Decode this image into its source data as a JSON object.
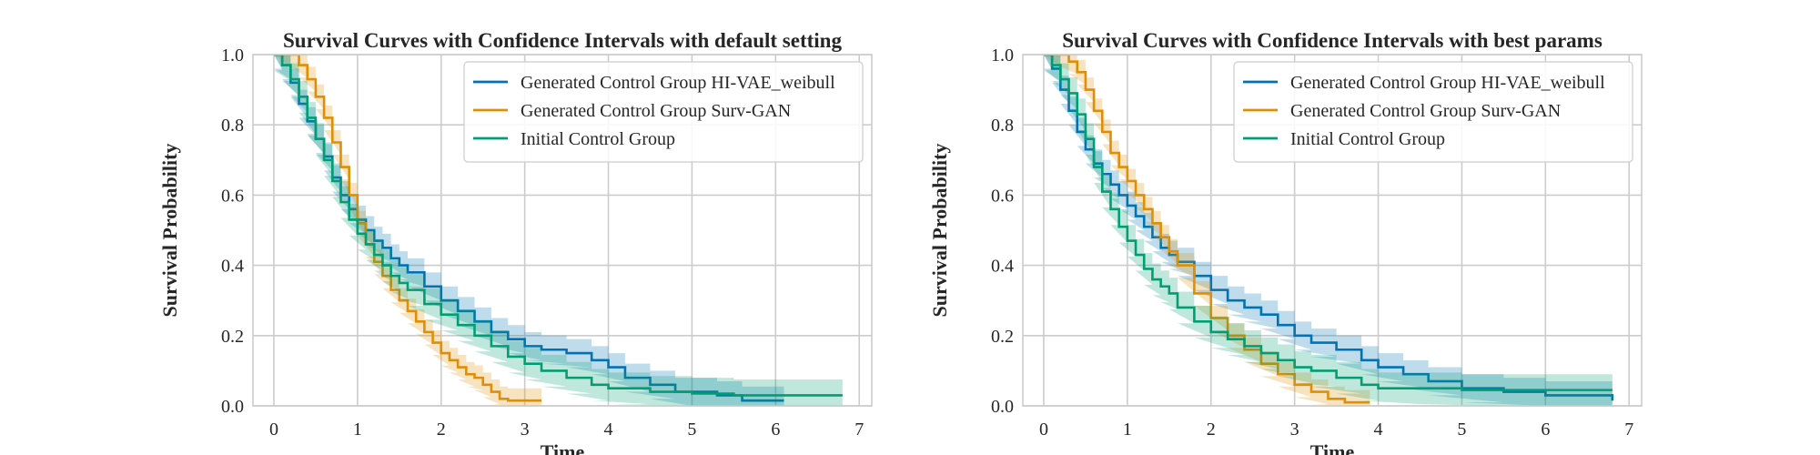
{
  "chart_data": [
    {
      "type": "line",
      "subtype": "step-survival-with-ci",
      "title": "Survival Curves with Confidence Intervals with default setting",
      "xlabel": "Time",
      "ylabel": "Survival Probability",
      "xlim": [
        -0.25,
        7.15
      ],
      "ylim": [
        0.0,
        1.0
      ],
      "xticks": [
        0,
        1,
        2,
        3,
        4,
        5,
        6,
        7
      ],
      "yticks": [
        0.0,
        0.2,
        0.4,
        0.6,
        0.8,
        1.0
      ],
      "grid": true,
      "legend": "top-right",
      "series": [
        {
          "name": "Generated Control Group HI-VAE_weibull",
          "color": "#0173b2",
          "x": [
            0,
            0.1,
            0.2,
            0.3,
            0.4,
            0.5,
            0.6,
            0.7,
            0.8,
            0.9,
            1.0,
            1.1,
            1.2,
            1.3,
            1.4,
            1.5,
            1.6,
            1.8,
            2.0,
            2.2,
            2.4,
            2.6,
            2.8,
            3.0,
            3.2,
            3.5,
            3.8,
            4.0,
            4.2,
            4.5,
            4.8,
            5.0,
            5.3,
            5.6,
            6.1
          ],
          "y": [
            1.0,
            0.97,
            0.92,
            0.86,
            0.81,
            0.76,
            0.71,
            0.65,
            0.6,
            0.56,
            0.53,
            0.5,
            0.47,
            0.45,
            0.42,
            0.4,
            0.38,
            0.34,
            0.3,
            0.27,
            0.24,
            0.21,
            0.19,
            0.17,
            0.16,
            0.15,
            0.13,
            0.11,
            0.08,
            0.06,
            0.04,
            0.04,
            0.03,
            0.015,
            0.015
          ],
          "ci_width": 0.04
        },
        {
          "name": "Generated Control Group Surv-GAN",
          "color": "#de8f05",
          "x": [
            0,
            0.2,
            0.3,
            0.4,
            0.5,
            0.6,
            0.7,
            0.8,
            0.9,
            1.0,
            1.1,
            1.2,
            1.3,
            1.4,
            1.5,
            1.6,
            1.7,
            1.8,
            1.9,
            2.0,
            2.1,
            2.2,
            2.3,
            2.4,
            2.5,
            2.6,
            2.7,
            2.8,
            3.0,
            3.2
          ],
          "y": [
            1.0,
            1.0,
            0.97,
            0.93,
            0.88,
            0.82,
            0.75,
            0.68,
            0.6,
            0.52,
            0.46,
            0.41,
            0.37,
            0.33,
            0.3,
            0.27,
            0.24,
            0.21,
            0.18,
            0.15,
            0.13,
            0.11,
            0.09,
            0.08,
            0.06,
            0.04,
            0.02,
            0.015,
            0.015,
            0.015
          ],
          "ci_width": 0.035
        },
        {
          "name": "Initial Control Group",
          "color": "#029e73",
          "x": [
            0,
            0.1,
            0.2,
            0.3,
            0.4,
            0.5,
            0.6,
            0.7,
            0.8,
            0.9,
            1.0,
            1.1,
            1.2,
            1.3,
            1.4,
            1.5,
            1.6,
            1.8,
            2.0,
            2.2,
            2.4,
            2.6,
            2.8,
            3.0,
            3.2,
            3.5,
            3.8,
            4.0,
            4.5,
            5.0,
            5.5,
            6.0,
            6.5,
            6.8
          ],
          "y": [
            1.0,
            0.97,
            0.93,
            0.88,
            0.82,
            0.76,
            0.7,
            0.64,
            0.58,
            0.53,
            0.49,
            0.46,
            0.43,
            0.4,
            0.37,
            0.35,
            0.33,
            0.29,
            0.26,
            0.23,
            0.2,
            0.17,
            0.14,
            0.12,
            0.1,
            0.08,
            0.06,
            0.05,
            0.04,
            0.035,
            0.03,
            0.03,
            0.03,
            0.03
          ],
          "ci_width": 0.045
        }
      ]
    },
    {
      "type": "line",
      "subtype": "step-survival-with-ci",
      "title": "Survival Curves with Confidence Intervals with best params",
      "xlabel": "Time",
      "ylabel": "Survival Probability",
      "xlim": [
        -0.25,
        7.15
      ],
      "ylim": [
        0.0,
        1.0
      ],
      "xticks": [
        0,
        1,
        2,
        3,
        4,
        5,
        6,
        7
      ],
      "yticks": [
        0.0,
        0.2,
        0.4,
        0.6,
        0.8,
        1.0
      ],
      "grid": true,
      "legend": "top-right",
      "series": [
        {
          "name": "Generated Control Group HI-VAE_weibull",
          "color": "#0173b2",
          "x": [
            0,
            0.1,
            0.2,
            0.3,
            0.4,
            0.5,
            0.6,
            0.7,
            0.8,
            0.9,
            1.0,
            1.1,
            1.2,
            1.3,
            1.4,
            1.5,
            1.6,
            1.8,
            2.0,
            2.2,
            2.4,
            2.6,
            2.8,
            3.0,
            3.2,
            3.5,
            3.8,
            4.0,
            4.3,
            4.6,
            5.0,
            5.5,
            6.0,
            6.8
          ],
          "y": [
            1.0,
            0.96,
            0.9,
            0.84,
            0.78,
            0.73,
            0.69,
            0.66,
            0.63,
            0.6,
            0.57,
            0.54,
            0.51,
            0.48,
            0.45,
            0.43,
            0.41,
            0.37,
            0.33,
            0.3,
            0.28,
            0.26,
            0.23,
            0.2,
            0.18,
            0.16,
            0.13,
            0.11,
            0.09,
            0.07,
            0.05,
            0.04,
            0.03,
            0.015
          ],
          "ci_width": 0.04
        },
        {
          "name": "Generated Control Group Surv-GAN",
          "color": "#de8f05",
          "x": [
            0,
            0.2,
            0.3,
            0.4,
            0.5,
            0.6,
            0.7,
            0.8,
            0.9,
            1.0,
            1.1,
            1.2,
            1.3,
            1.4,
            1.5,
            1.6,
            1.8,
            2.0,
            2.2,
            2.4,
            2.6,
            2.8,
            3.0,
            3.2,
            3.4,
            3.6,
            3.9
          ],
          "y": [
            1.0,
            1.0,
            0.98,
            0.95,
            0.9,
            0.84,
            0.78,
            0.72,
            0.68,
            0.64,
            0.6,
            0.56,
            0.52,
            0.48,
            0.44,
            0.4,
            0.32,
            0.25,
            0.2,
            0.16,
            0.12,
            0.09,
            0.06,
            0.04,
            0.02,
            0.01,
            0.01
          ],
          "ci_width": 0.035
        },
        {
          "name": "Initial Control Group",
          "color": "#029e73",
          "x": [
            0,
            0.1,
            0.2,
            0.3,
            0.4,
            0.5,
            0.6,
            0.7,
            0.8,
            0.9,
            1.0,
            1.1,
            1.2,
            1.3,
            1.4,
            1.5,
            1.6,
            1.8,
            2.0,
            2.2,
            2.4,
            2.6,
            2.8,
            3.0,
            3.2,
            3.5,
            3.8,
            4.0,
            4.5,
            5.0,
            5.5,
            6.0,
            6.8
          ],
          "y": [
            1.0,
            0.97,
            0.93,
            0.89,
            0.83,
            0.76,
            0.68,
            0.61,
            0.56,
            0.51,
            0.47,
            0.43,
            0.39,
            0.36,
            0.34,
            0.32,
            0.28,
            0.24,
            0.21,
            0.19,
            0.17,
            0.15,
            0.13,
            0.11,
            0.1,
            0.08,
            0.06,
            0.05,
            0.05,
            0.045,
            0.045,
            0.045,
            0.045
          ],
          "ci_width": 0.045
        }
      ]
    }
  ]
}
